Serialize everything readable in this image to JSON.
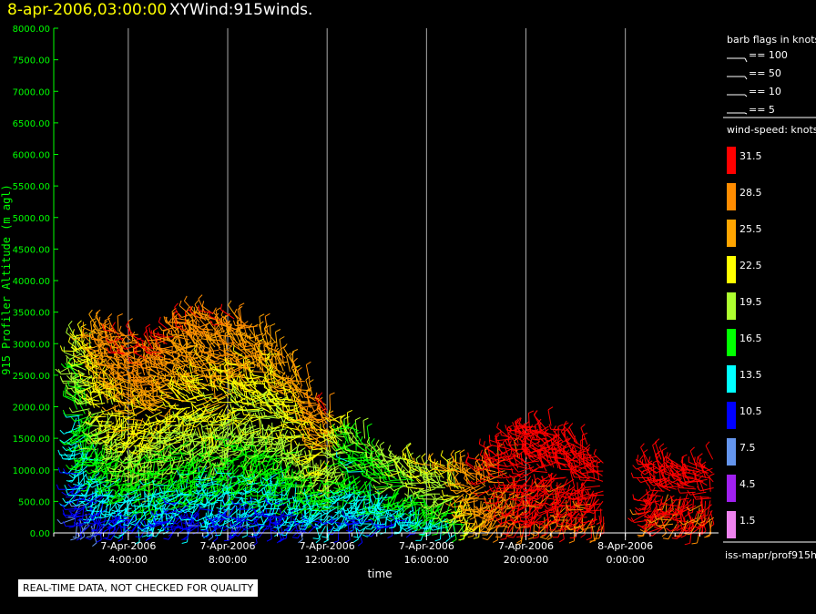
{
  "header": {
    "time_label": "8-apr-2006,03:00:00",
    "product_label": "XYWind:915winds."
  },
  "chart_data": {
    "type": "scatter",
    "subtype": "wind-barbs",
    "ylabel": "915 Profiler Altitude (m agl)",
    "xlabel": "time",
    "ylim": [
      0,
      8000
    ],
    "yticks": [
      "0.00",
      "500.00",
      "1000.00",
      "1500.00",
      "2000.00",
      "2500.00",
      "3000.00",
      "3500.00",
      "4000.00",
      "4500.00",
      "5000.00",
      "5500.00",
      "6000.00",
      "6500.00",
      "7000.00",
      "7500.00",
      "8000.00"
    ],
    "xlim_hours": [
      1.0,
      27.75
    ],
    "xticks": [
      {
        "hour": 4,
        "date": "7-Apr-2006",
        "time": "4:00:00"
      },
      {
        "hour": 8,
        "date": "7-Apr-2006",
        "time": "8:00:00"
      },
      {
        "hour": 12,
        "date": "7-Apr-2006",
        "time": "12:00:00"
      },
      {
        "hour": 16,
        "date": "7-Apr-2006",
        "time": "16:00:00"
      },
      {
        "hour": 20,
        "date": "7-Apr-2006",
        "time": "20:00:00"
      },
      {
        "hour": 24,
        "date": "8-Apr-2006",
        "time": "0:00:00"
      }
    ],
    "grid": true,
    "envelope": [
      {
        "hour": 2.0,
        "top_m": 3100,
        "speed_low_knots": 7,
        "speed_high_knots": 20
      },
      {
        "hour": 3.0,
        "top_m": 3300,
        "speed_low_knots": 8,
        "speed_high_knots": 28
      },
      {
        "hour": 4.0,
        "top_m": 3200,
        "speed_low_knots": 9,
        "speed_high_knots": 31
      },
      {
        "hour": 5.0,
        "top_m": 3000,
        "speed_low_knots": 9,
        "speed_high_knots": 31
      },
      {
        "hour": 6.0,
        "top_m": 3400,
        "speed_low_knots": 9,
        "speed_high_knots": 30
      },
      {
        "hour": 7.0,
        "top_m": 3500,
        "speed_low_knots": 9,
        "speed_high_knots": 29
      },
      {
        "hour": 8.0,
        "top_m": 3400,
        "speed_low_knots": 9,
        "speed_high_knots": 29
      },
      {
        "hour": 9.0,
        "top_m": 3300,
        "speed_low_knots": 9,
        "speed_high_knots": 28
      },
      {
        "hour": 10.0,
        "top_m": 3000,
        "speed_low_knots": 9,
        "speed_high_knots": 26
      },
      {
        "hour": 11.0,
        "top_m": 2500,
        "speed_low_knots": 9,
        "speed_high_knots": 27
      },
      {
        "hour": 12.0,
        "top_m": 2000,
        "speed_low_knots": 9,
        "speed_high_knots": 31
      },
      {
        "hour": 13.0,
        "top_m": 1700,
        "speed_low_knots": 10,
        "speed_high_knots": 19
      },
      {
        "hour": 14.0,
        "top_m": 1300,
        "speed_low_knots": 10,
        "speed_high_knots": 19
      },
      {
        "hour": 15.0,
        "top_m": 1200,
        "speed_low_knots": 10,
        "speed_high_knots": 21
      },
      {
        "hour": 16.0,
        "top_m": 1100,
        "speed_low_knots": 11,
        "speed_high_knots": 23
      },
      {
        "hour": 17.0,
        "top_m": 1100,
        "speed_low_knots": 12,
        "speed_high_knots": 24
      },
      {
        "hour": 18.0,
        "top_m": 1000,
        "speed_low_knots": 22,
        "speed_high_knots": 30
      },
      {
        "hour": 19.0,
        "top_m": 1400,
        "speed_low_knots": 27,
        "speed_high_knots": 32
      },
      {
        "hour": 20.0,
        "top_m": 1700,
        "speed_low_knots": 30,
        "speed_high_knots": 33
      },
      {
        "hour": 21.0,
        "top_m": 1700,
        "speed_low_knots": 30,
        "speed_high_knots": 33
      },
      {
        "hour": 22.0,
        "top_m": 1500,
        "speed_low_knots": 30,
        "speed_high_knots": 33
      },
      {
        "hour": 23.0,
        "top_m": 1200,
        "speed_low_knots": 30,
        "speed_high_knots": 33
      },
      {
        "hour": 25.0,
        "top_m": 1200,
        "speed_low_knots": 30,
        "speed_high_knots": 33
      },
      {
        "hour": 26.0,
        "top_m": 1100,
        "speed_low_knots": 30,
        "speed_high_knots": 33
      },
      {
        "hour": 27.0,
        "top_m": 1100,
        "speed_low_knots": 30,
        "speed_high_knots": 33
      },
      {
        "hour": 27.6,
        "top_m": 1150,
        "speed_low_knots": 30,
        "speed_high_knots": 33
      }
    ]
  },
  "legend": {
    "barb_title": "barb flags in knots",
    "barbs": [
      {
        "label": "== 100"
      },
      {
        "label": "== 50"
      },
      {
        "label": "== 10"
      },
      {
        "label": "== 5"
      }
    ],
    "speed_title": "wind-speed: knots",
    "scale": [
      {
        "label": "31.5",
        "color": "#ff0000"
      },
      {
        "label": "28.5",
        "color": "#ff8c00"
      },
      {
        "label": "25.5",
        "color": "#ffa500"
      },
      {
        "label": "22.5",
        "color": "#ffff00"
      },
      {
        "label": "19.5",
        "color": "#adff2f"
      },
      {
        "label": "16.5",
        "color": "#00ff00"
      },
      {
        "label": "13.5",
        "color": "#00ffff"
      },
      {
        "label": "10.5",
        "color": "#0000ff"
      },
      {
        "label": "7.5",
        "color": "#6495ed"
      },
      {
        "label": "4.5",
        "color": "#a020f0"
      },
      {
        "label": "1.5",
        "color": "#ee82ee"
      }
    ],
    "source": "iss-mapr/prof915h"
  },
  "footer": {
    "note": "REAL-TIME DATA, NOT CHECKED FOR QUALITY"
  }
}
